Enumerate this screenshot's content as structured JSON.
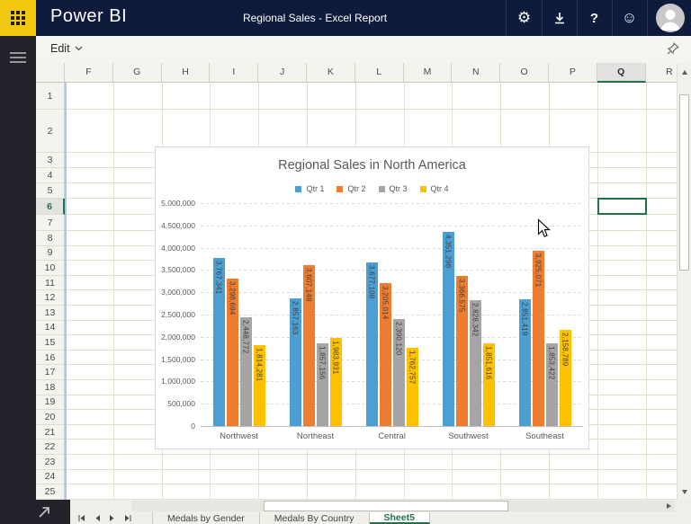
{
  "navbar": {
    "app_title": "Power BI",
    "report_title": "Regional Sales - Excel Report",
    "icons": [
      "apps-grid-icon",
      "settings-icon",
      "download-icon",
      "help-icon",
      "feedback-smiley-icon",
      "account-avatar"
    ]
  },
  "toolbar": {
    "edit_label": "Edit"
  },
  "grid": {
    "columns": [
      "F",
      "G",
      "H",
      "I",
      "J",
      "K",
      "L",
      "M",
      "N",
      "O",
      "P",
      "Q",
      "R"
    ],
    "rows": [
      "1",
      "2",
      "3",
      "4",
      "5",
      "6",
      "7",
      "8",
      "9",
      "10",
      "11",
      "12",
      "13",
      "14",
      "15",
      "16",
      "17",
      "18",
      "19",
      "20",
      "21",
      "22",
      "23",
      "24",
      "25"
    ],
    "selected_column": "Q",
    "selected_row": "6",
    "selected_cell": "Q6"
  },
  "chart_data": {
    "type": "bar",
    "title": "Regional Sales in North America",
    "categories": [
      "Northwest",
      "Northeast",
      "Central",
      "Southwest",
      "Southeast"
    ],
    "series": [
      {
        "name": "Qtr 1",
        "color": "#4c9fd3",
        "values": [
          3767341,
          2857163,
          3677108,
          4351296,
          2851419
        ]
      },
      {
        "name": "Qtr 2",
        "color": "#ed7d31",
        "values": [
          3298694,
          3607148,
          3205014,
          3366575,
          3925071
        ]
      },
      {
        "name": "Qtr 3",
        "color": "#a5a5a5",
        "values": [
          2448772,
          1857156,
          2390120,
          2828342,
          1853422
        ]
      },
      {
        "name": "Qtr 4",
        "color": "#ffc000",
        "values": [
          1814281,
          1983931,
          1762757,
          1851616,
          2158789
        ]
      }
    ],
    "ylim": [
      0,
      5000000
    ],
    "ytick_step": 500000,
    "grid": true,
    "legend_position": "top",
    "data_labels": true
  },
  "sheet_tabs": {
    "tabs": [
      {
        "label": "Medals by Gender",
        "active": false
      },
      {
        "label": "Medals By Country",
        "active": false
      },
      {
        "label": "Sheet5",
        "active": true
      }
    ]
  },
  "colors": {
    "accent_green": "#217346",
    "powerbi_yellow": "#F2C811",
    "navbar_navy": "#0f1b3d"
  }
}
